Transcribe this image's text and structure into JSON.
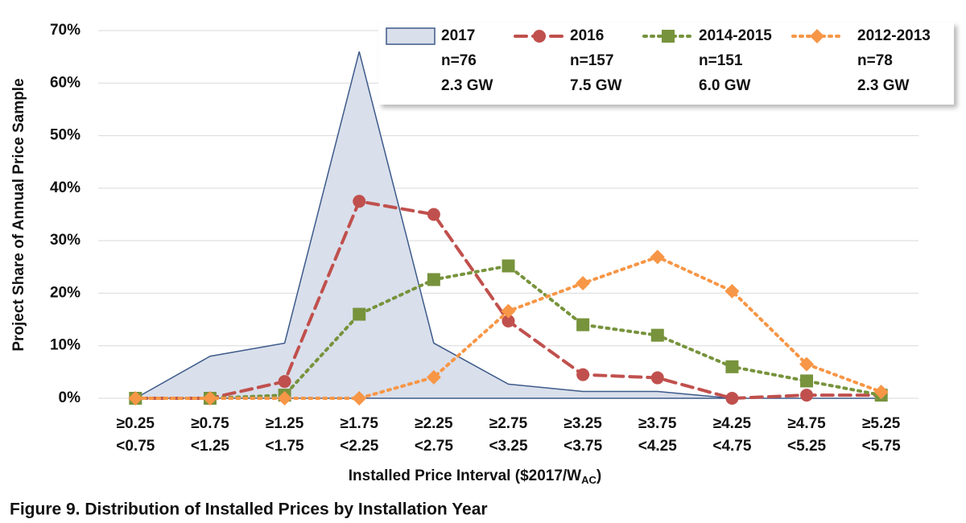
{
  "chart_data": {
    "type": "line",
    "title": "Figure 9. Distribution of Installed Prices by Installation Year",
    "y_label": "Project Share of Annual Price Sample",
    "x_label": "Installed Price Interval ($2017/W",
    "x_label_subscript": "AC",
    "x_label_suffix": ")",
    "categories": [
      [
        "≥0.25",
        "<0.75"
      ],
      [
        "≥0.75",
        "<1.25"
      ],
      [
        "≥1.25",
        "<1.75"
      ],
      [
        "≥1.75",
        "<2.25"
      ],
      [
        "≥2.25",
        "<2.75"
      ],
      [
        "≥2.75",
        "<3.25"
      ],
      [
        "≥3.25",
        "<3.75"
      ],
      [
        "≥3.75",
        "<4.25"
      ],
      [
        "≥4.25",
        "<4.75"
      ],
      [
        "≥4.75",
        "<5.25"
      ],
      [
        "≥5.25",
        "<5.75"
      ]
    ],
    "ylim": [
      0,
      70
    ],
    "yticks": [
      {
        "value": 0,
        "label": "0%"
      },
      {
        "value": 10,
        "label": "10%"
      },
      {
        "value": 20,
        "label": "20%"
      },
      {
        "value": 30,
        "label": "30%"
      },
      {
        "value": 40,
        "label": "40%"
      },
      {
        "value": 50,
        "label": "50%"
      },
      {
        "value": 60,
        "label": "60%"
      },
      {
        "value": 70,
        "label": "70%"
      }
    ],
    "grid": true,
    "legend": "upper right",
    "series": [
      {
        "name": "2017",
        "n": "n=76",
        "capacity": "2.3 GW",
        "style": "area",
        "color": "#3d5a8a",
        "fill": "#d9dfeb",
        "values": [
          0,
          8,
          10.5,
          66,
          10.5,
          2.7,
          1.3,
          1.3,
          0,
          0,
          0
        ]
      },
      {
        "name": "2016",
        "n": "n=157",
        "capacity": "7.5 GW",
        "style": "dashed",
        "marker": "circle",
        "color": "#c0504d",
        "values": [
          0,
          0,
          3.2,
          37.5,
          35,
          14.7,
          4.5,
          3.9,
          0,
          0.6,
          0.6
        ]
      },
      {
        "name": "2014-2015",
        "n": "n=151",
        "capacity": "6.0 GW",
        "style": "dotted",
        "marker": "square",
        "color": "#77933c",
        "values": [
          0,
          0,
          0.6,
          16,
          22.6,
          25.2,
          14,
          12,
          6,
          3.3,
          0.6
        ]
      },
      {
        "name": "2012-2013",
        "n": "n=78",
        "capacity": "2.3 GW",
        "style": "dotted",
        "marker": "diamond",
        "color": "#f79646",
        "values": [
          0,
          0,
          0,
          0,
          4,
          16.6,
          21.9,
          26.9,
          20.4,
          6.5,
          1.2
        ]
      }
    ]
  }
}
